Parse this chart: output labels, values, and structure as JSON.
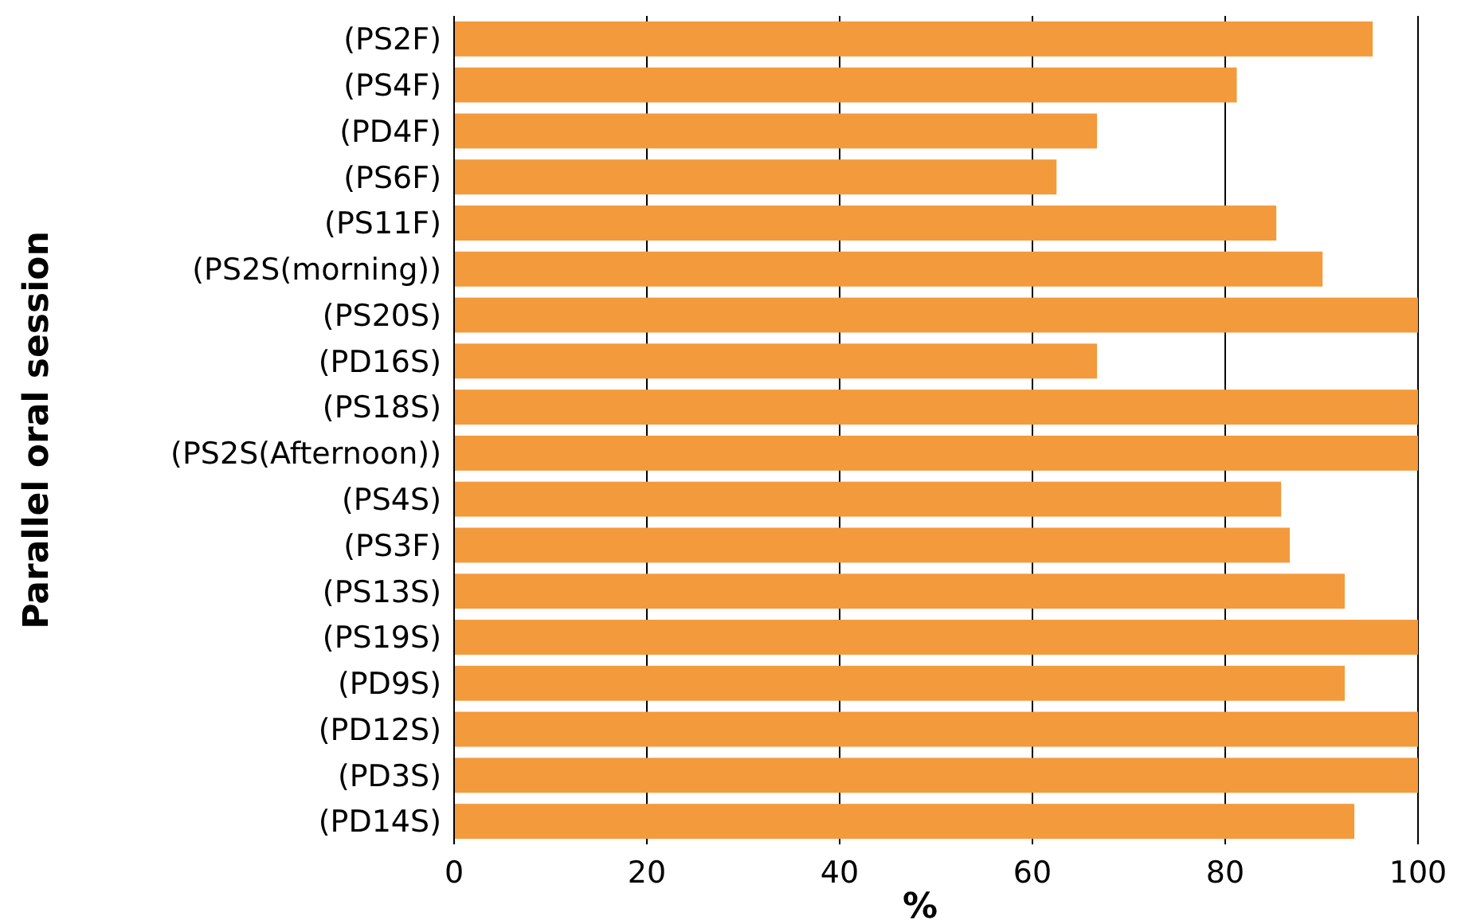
{
  "chart_data": {
    "type": "bar",
    "orientation": "horizontal",
    "ylabel": "Parallel oral session",
    "xlabel": "%",
    "categories": [
      "(PS2F)",
      "(PS4F)",
      "(PD4F)",
      "(PS6F)",
      "(PS11F)",
      "(PS2S(morning))",
      "(PS20S)",
      "(PD16S)",
      "(PS18S)",
      "(PS2S(Afternoon))",
      "(PS4S)",
      "(PS3F)",
      "(PS13S)",
      "(PS19S)",
      "(PD9S)",
      "(PD12S)",
      "(PD3S)",
      "(PD14S)"
    ],
    "values": [
      95.3,
      81.2,
      66.7,
      62.5,
      85.3,
      90.1,
      100,
      66.7,
      100,
      100,
      85.8,
      86.7,
      92.4,
      100,
      92.4,
      100,
      100,
      93.4
    ],
    "color": "#f39a3d",
    "xlim": [
      0,
      100
    ],
    "xticks": [
      0,
      20,
      40,
      60,
      80,
      100
    ],
    "grid": "x"
  }
}
